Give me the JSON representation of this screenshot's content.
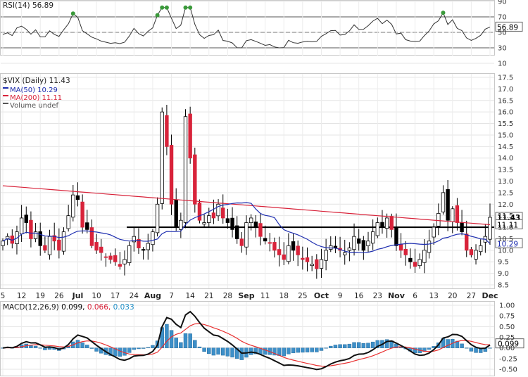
{
  "rsi_panel": {
    "title": "RSI(14) 56.89",
    "ticks": [
      "90",
      "70",
      "50",
      "30",
      "10"
    ],
    "current_label": "56.89",
    "overbought": 70,
    "oversold": 30
  },
  "price_panel": {
    "title": "$VIX (Daily) 11.43",
    "legend": [
      {
        "label": "MA(50) 10.29",
        "color": "#1f2fb0"
      },
      {
        "label": "MA(200) 11.11",
        "color": "#d8233a"
      },
      {
        "label": "Volume undef",
        "color": "#555555"
      }
    ],
    "ticks": [
      "17.5",
      "17.0",
      "16.5",
      "16.0",
      "15.5",
      "15.0",
      "14.5",
      "14.0",
      "13.5",
      "13.0",
      "12.5",
      "12.0",
      "11.5",
      "11.0",
      "10.5",
      "10.0",
      "9.5",
      "9.0",
      "8.5"
    ],
    "current_labels": {
      "close": "11.43",
      "ma200": "11.11",
      "ma50": "10.29"
    },
    "support_line": 11.0
  },
  "x_axis": {
    "labels": [
      "5",
      "12",
      "19",
      "26",
      "Jul",
      "10",
      "17",
      "24",
      "Aug",
      "7",
      "14",
      "21",
      "28",
      "Sep",
      "11",
      "18",
      "25",
      "Oct",
      "9",
      "16",
      "23",
      "Nov",
      "6",
      "13",
      "20",
      "27",
      "Dec"
    ],
    "bold": [
      "Jul",
      "Aug",
      "Sep",
      "Oct",
      "Nov",
      "Dec"
    ]
  },
  "macd_panel": {
    "title": "MACD(12,26,9)",
    "values": [
      "0.099,",
      "0.066,",
      "0.033"
    ],
    "value_colors": [
      "#000000",
      "#d8233a",
      "#1e8fc8"
    ],
    "ticks": [
      "1.00",
      "0.75",
      "0.50",
      "0.25",
      "0.00",
      "-0.25",
      "-0.50"
    ],
    "current_label": "0.099"
  },
  "chart_data": {
    "type": "candlestick",
    "symbol": "$VIX",
    "x_start_label": "5",
    "close_values": [
      10.4,
      10.6,
      10.3,
      10.8,
      11.4,
      11.2,
      10.5,
      10.8,
      10.2,
      10.0,
      10.6,
      10.4,
      10.0,
      10.8,
      11.5,
      12.4,
      12.2,
      11.0,
      10.9,
      10.2,
      10.0,
      9.9,
      9.7,
      9.6,
      9.5,
      9.3,
      9.6,
      10.2,
      10.6,
      10.1,
      10.0,
      10.3,
      10.8,
      12.0,
      16.0,
      14.5,
      12.0,
      11.0,
      11.3,
      15.8,
      14.0,
      12.0,
      11.3,
      11.2,
      11.5,
      11.4,
      12.0,
      11.4,
      11.2,
      10.9,
      10.5,
      10.2,
      11.2,
      11.4,
      11.0,
      10.6,
      10.4,
      10.3,
      10.0,
      9.8,
      9.6,
      10.2,
      10.0,
      9.8,
      9.6,
      9.5,
      9.4,
      9.2,
      9.6,
      10.0,
      10.2,
      10.1,
      10.0,
      9.9,
      10.1,
      10.6,
      10.3,
      10.0,
      10.4,
      10.8,
      11.2,
      11.0,
      11.4,
      10.9,
      10.2,
      10.0,
      9.8,
      9.5,
      9.3,
      9.6,
      10.0,
      10.4,
      11.0,
      11.6,
      12.5,
      11.3,
      11.8,
      11.2,
      10.8,
      10.0,
      9.8,
      10.0,
      10.2,
      10.6,
      11.43
    ],
    "ma50_label": "MA(50) 10.29",
    "ma200_label": "MA(200) 11.11",
    "ylim": [
      8.5,
      17.5
    ],
    "rsi_ylim": [
      10,
      90
    ],
    "macd_ylim": [
      -0.5,
      1.0
    ],
    "grid": true
  }
}
